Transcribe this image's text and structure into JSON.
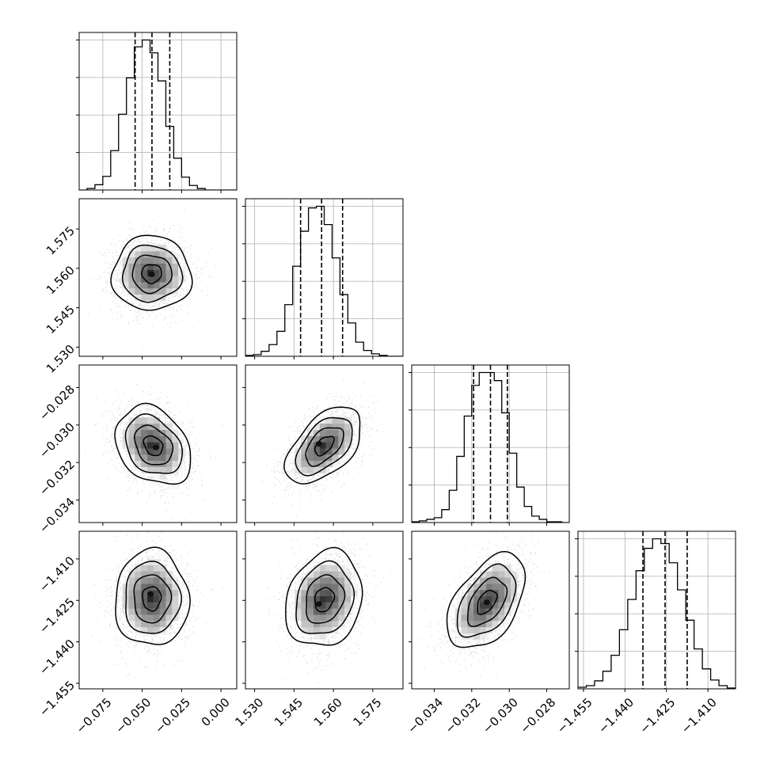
{
  "figure": {
    "type": "corner-plot"
  },
  "chart_data": {
    "type": "corner",
    "parameters": [
      {
        "index": 0,
        "axis_range": [
          -0.09,
          0.01
        ],
        "ticks": [
          -0.075,
          -0.05,
          -0.025,
          0.0
        ],
        "tick_labels": [
          "−0.075",
          "−0.050",
          "−0.025",
          "0.000"
        ],
        "quantiles": [
          -0.0545,
          -0.0438,
          -0.0325
        ],
        "hist_bins": [
          -0.09,
          -0.085,
          -0.08,
          -0.075,
          -0.07,
          -0.065,
          -0.06,
          -0.055,
          -0.05,
          -0.045,
          -0.04,
          -0.035,
          -0.03,
          -0.025,
          -0.02,
          -0.015,
          -0.01,
          -0.005,
          0.0,
          0.005,
          0.01
        ],
        "hist_counts": [
          0,
          2,
          7,
          18,
          52,
          100,
          148,
          189,
          198,
          181,
          144,
          84,
          42,
          17,
          6,
          2,
          0,
          0,
          0,
          0
        ]
      },
      {
        "index": 1,
        "axis_range": [
          1.5265,
          1.5865
        ],
        "ticks": [
          1.53,
          1.545,
          1.56,
          1.575
        ],
        "tick_labels": [
          "1.530",
          "1.545",
          "1.560",
          "1.575"
        ],
        "quantiles": [
          1.5475,
          1.5555,
          1.5635
        ],
        "hist_bins": [
          1.5265,
          1.5295,
          1.5325,
          1.5355,
          1.5385,
          1.5415,
          1.5445,
          1.5475,
          1.5505,
          1.5535,
          1.5565,
          1.5595,
          1.5625,
          1.5655,
          1.5685,
          1.5715,
          1.5745,
          1.5775,
          1.5805,
          1.5835,
          1.5865
        ],
        "hist_counts": [
          1,
          2,
          6,
          14,
          30,
          62,
          108,
          150,
          178,
          180,
          158,
          118,
          74,
          40,
          17,
          7,
          3,
          1,
          0,
          0
        ]
      },
      {
        "index": 2,
        "axis_range": [
          -0.0352,
          -0.0268
        ],
        "ticks": [
          -0.034,
          -0.032,
          -0.03,
          -0.028
        ],
        "tick_labels": [
          "−0.034",
          "−0.032",
          "−0.030",
          "−0.028"
        ],
        "quantiles": [
          -0.0319,
          -0.031,
          -0.0301
        ],
        "hist_bins": [
          -0.0352,
          -0.0348,
          -0.0344,
          -0.034,
          -0.0336,
          -0.0332,
          -0.0328,
          -0.0324,
          -0.032,
          -0.0316,
          -0.0312,
          -0.0308,
          -0.0304,
          -0.03,
          -0.0296,
          -0.0292,
          -0.0288,
          -0.0284,
          -0.028,
          -0.0276,
          -0.0272,
          -0.0268
        ],
        "hist_counts": [
          1,
          2,
          4,
          6,
          16,
          40,
          82,
          132,
          170,
          186,
          186,
          176,
          136,
          86,
          44,
          20,
          8,
          4,
          1,
          1,
          0
        ]
      },
      {
        "index": 3,
        "axis_range": [
          -1.457,
          -1.4
        ],
        "ticks": [
          -1.455,
          -1.44,
          -1.425,
          -1.41
        ],
        "tick_labels": [
          "−1.455",
          "−1.440",
          "−1.425",
          "−1.410"
        ],
        "quantiles": [
          -1.4335,
          -1.4255,
          -1.4175
        ],
        "hist_bins": [
          -1.457,
          -1.454,
          -1.451,
          -1.448,
          -1.445,
          -1.442,
          -1.439,
          -1.436,
          -1.433,
          -1.43,
          -1.427,
          -1.424,
          -1.421,
          -1.418,
          -1.415,
          -1.412,
          -1.409,
          -1.406,
          -1.403,
          -1.4
        ],
        "hist_counts": [
          2,
          4,
          10,
          22,
          42,
          74,
          112,
          148,
          176,
          188,
          182,
          158,
          124,
          86,
          50,
          25,
          11,
          4,
          1
        ]
      }
    ],
    "pairs": [
      {
        "x": 0,
        "y": 1,
        "center": [
          -0.044,
          1.558
        ],
        "scale": [
          0.0125,
          0.0071
        ],
        "rho": 0.0,
        "peak": [
          -0.044,
          1.5577
        ]
      },
      {
        "x": 0,
        "y": 2,
        "center": [
          -0.043,
          -0.0311
        ],
        "scale": [
          0.012,
          0.00105
        ],
        "rho": -0.28,
        "peak": [
          -0.0413,
          -0.0312
        ]
      },
      {
        "x": 1,
        "y": 2,
        "center": [
          1.5565,
          -0.0311
        ],
        "scale": [
          0.0072,
          0.00102
        ],
        "rho": 0.52,
        "peak": [
          1.5545,
          -0.031
        ]
      },
      {
        "x": 0,
        "y": 3,
        "center": [
          -0.044,
          -1.4243
        ],
        "scale": [
          0.0117,
          0.0087
        ],
        "rho": 0.0,
        "peak": [
          -0.0447,
          -1.4227
        ]
      },
      {
        "x": 1,
        "y": 3,
        "center": [
          1.5565,
          -1.4247
        ],
        "scale": [
          0.0073,
          0.0087
        ],
        "rho": 0.18,
        "peak": [
          1.5545,
          -1.4263
        ]
      },
      {
        "x": 2,
        "y": 3,
        "center": [
          -0.0312,
          -1.4256
        ],
        "scale": [
          0.00104,
          0.0086
        ],
        "rho": 0.48,
        "peak": [
          -0.0312,
          -1.4257
        ]
      }
    ],
    "contour_levels_sigma": [
      0.5,
      1.0,
      1.5,
      2.0
    ],
    "grid": true,
    "legend": "none"
  }
}
